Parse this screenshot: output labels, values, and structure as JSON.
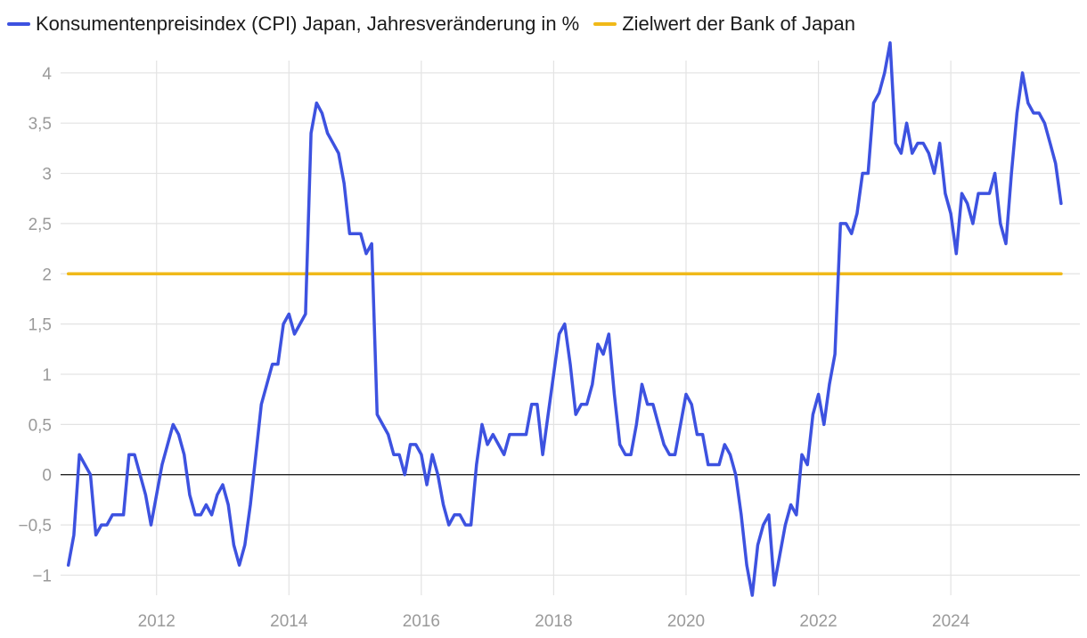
{
  "chart_data": {
    "type": "line",
    "title": "",
    "xlabel": "",
    "ylabel": "",
    "xlim": [
      2010.55,
      2025.95
    ],
    "ylim": [
      -1.2,
      4.3
    ],
    "x_ticks": [
      {
        "value": 2012,
        "label": "2012"
      },
      {
        "value": 2014,
        "label": "2014"
      },
      {
        "value": 2016,
        "label": "2016"
      },
      {
        "value": 2018,
        "label": "2018"
      },
      {
        "value": 2020,
        "label": "2020"
      },
      {
        "value": 2022,
        "label": "2022"
      },
      {
        "value": 2024,
        "label": "2024"
      }
    ],
    "y_ticks": [
      {
        "value": 4,
        "label": "4"
      },
      {
        "value": 3.5,
        "label": "3,5"
      },
      {
        "value": 3,
        "label": "3"
      },
      {
        "value": 2.5,
        "label": "2,5"
      },
      {
        "value": 2,
        "label": "2"
      },
      {
        "value": 1.5,
        "label": "1,5"
      },
      {
        "value": 1,
        "label": "1"
      },
      {
        "value": 0.5,
        "label": "0,5"
      },
      {
        "value": 0,
        "label": "0"
      },
      {
        "value": -0.5,
        "label": "−0,5"
      },
      {
        "value": -1,
        "label": "−1"
      }
    ],
    "zero_line": true,
    "grid": true,
    "legend_position": "top-left",
    "series": [
      {
        "name": "Konsumentenpreisindex (CPI) Japan, Jahresveränderung in %",
        "color": "#3d52e0",
        "x_start": 2010.667,
        "x_step": 0.08333,
        "values": [
          -0.9,
          -0.6,
          0.2,
          0.1,
          0.0,
          -0.6,
          -0.5,
          -0.5,
          -0.4,
          -0.4,
          -0.4,
          0.2,
          0.2,
          0.0,
          -0.2,
          -0.5,
          -0.2,
          0.1,
          0.3,
          0.5,
          0.4,
          0.2,
          -0.2,
          -0.4,
          -0.4,
          -0.3,
          -0.4,
          -0.2,
          -0.1,
          -0.3,
          -0.7,
          -0.9,
          -0.7,
          -0.3,
          0.2,
          0.7,
          0.9,
          1.1,
          1.1,
          1.5,
          1.6,
          1.4,
          1.5,
          1.6,
          3.4,
          3.7,
          3.6,
          3.4,
          3.3,
          3.2,
          2.9,
          2.4,
          2.4,
          2.4,
          2.2,
          2.3,
          0.6,
          0.5,
          0.4,
          0.2,
          0.2,
          0.0,
          0.3,
          0.3,
          0.2,
          -0.1,
          0.2,
          0.0,
          -0.3,
          -0.5,
          -0.4,
          -0.4,
          -0.5,
          -0.5,
          0.1,
          0.5,
          0.3,
          0.4,
          0.3,
          0.2,
          0.4,
          0.4,
          0.4,
          0.4,
          0.7,
          0.7,
          0.2,
          0.6,
          1.0,
          1.4,
          1.5,
          1.1,
          0.6,
          0.7,
          0.7,
          0.9,
          1.3,
          1.2,
          1.4,
          0.8,
          0.3,
          0.2,
          0.2,
          0.5,
          0.9,
          0.7,
          0.7,
          0.5,
          0.3,
          0.2,
          0.2,
          0.5,
          0.8,
          0.7,
          0.4,
          0.4,
          0.1,
          0.1,
          0.1,
          0.3,
          0.2,
          0.0,
          -0.4,
          -0.9,
          -1.2,
          -0.7,
          -0.5,
          -0.4,
          -1.1,
          -0.8,
          -0.5,
          -0.3,
          -0.4,
          0.2,
          0.1,
          0.6,
          0.8,
          0.5,
          0.9,
          1.2,
          2.5,
          2.5,
          2.4,
          2.6,
          3.0,
          3.0,
          3.7,
          3.8,
          4.0,
          4.3,
          3.3,
          3.2,
          3.5,
          3.2,
          3.3,
          3.3,
          3.2,
          3.0,
          3.3,
          2.8,
          2.6,
          2.2,
          2.8,
          2.7,
          2.5,
          2.8,
          2.8,
          2.8,
          3.0,
          2.5,
          2.3,
          3.0,
          3.6,
          4.0,
          3.7,
          3.6,
          3.6,
          3.5,
          3.3,
          3.1,
          2.7
        ]
      },
      {
        "name": "Zielwert der Bank of Japan",
        "color": "#f0b919",
        "x": [
          2010.667,
          2025.667
        ],
        "values": [
          2,
          2
        ]
      }
    ]
  }
}
